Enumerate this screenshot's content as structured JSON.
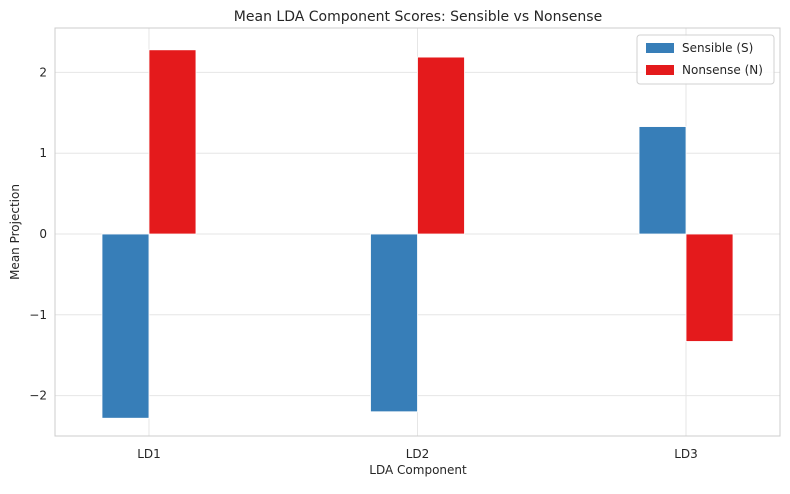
{
  "chart_data": {
    "type": "bar",
    "title": "Mean LDA Component Scores: Sensible vs Nonsense",
    "xlabel": "LDA Component",
    "ylabel": "Mean Projection",
    "categories": [
      "LD1",
      "LD2",
      "LD3"
    ],
    "series": [
      {
        "name": "Sensible (S)",
        "color": "#377eb8",
        "values": [
          -2.28,
          -2.2,
          1.33
        ]
      },
      {
        "name": "Nonsense (N)",
        "color": "#e41a1c",
        "values": [
          2.28,
          2.19,
          -1.33
        ]
      }
    ],
    "ylim": [
      -2.5,
      2.55
    ],
    "yticks": [
      2,
      1,
      0,
      -1,
      -2
    ],
    "ytick_labels": [
      "2",
      "1",
      "0",
      "−1",
      "−2"
    ],
    "grid": true,
    "legend_position": "top-right"
  }
}
